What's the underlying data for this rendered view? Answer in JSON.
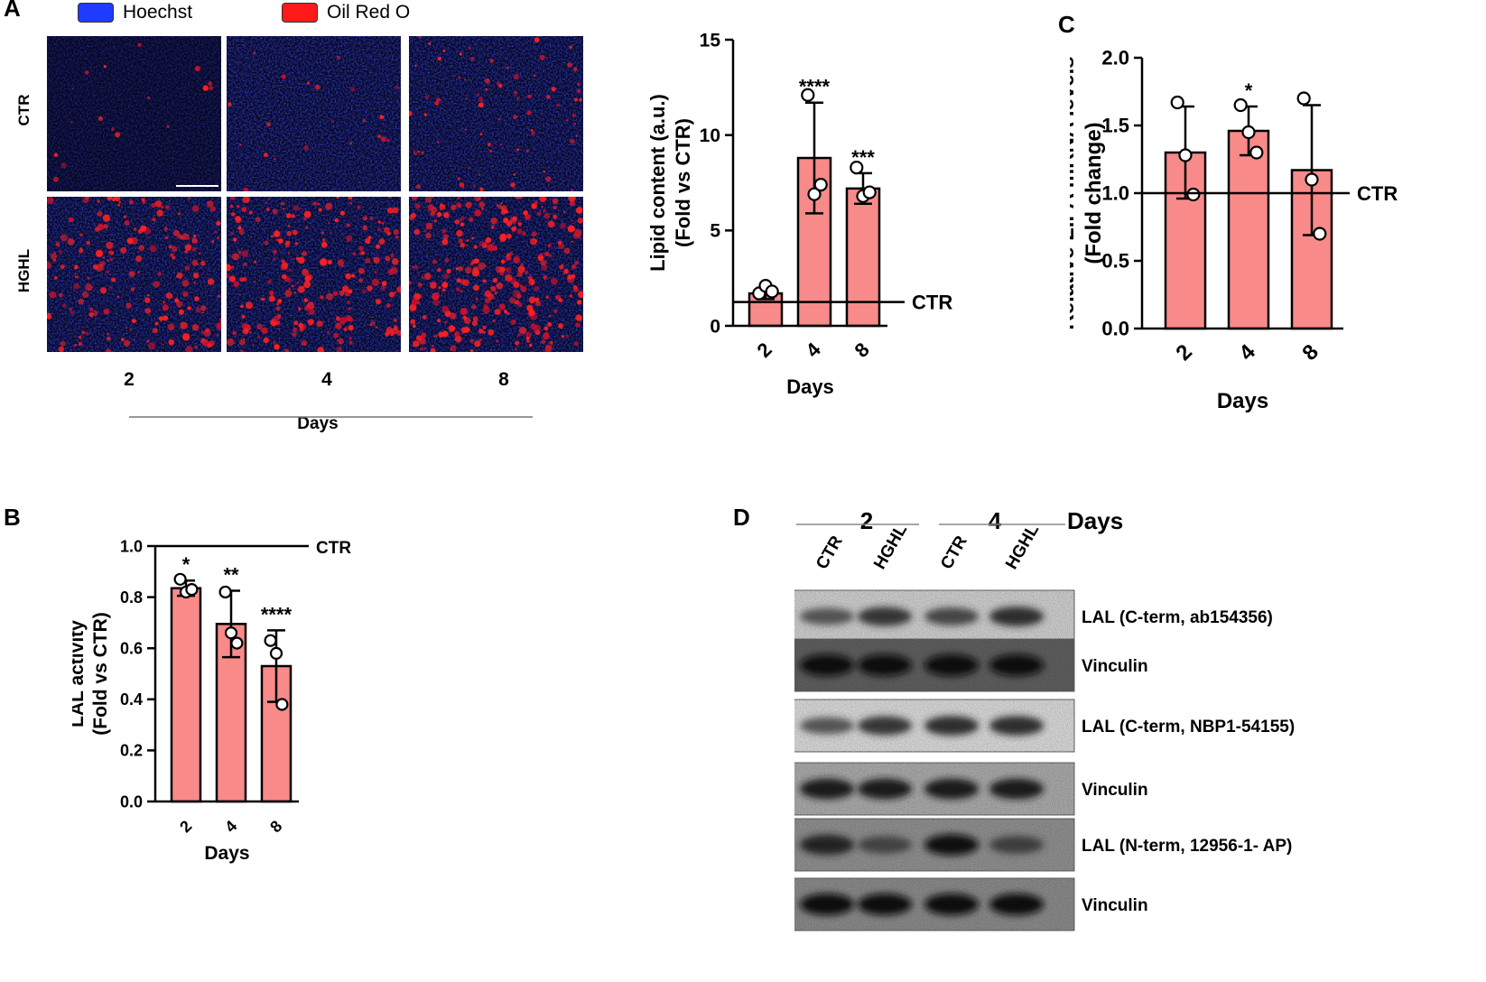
{
  "panel_labels": {
    "a": "A",
    "b": "B",
    "c": "C",
    "d": "D"
  },
  "colors": {
    "bar": "#f88a8a",
    "hoechst": "#1f3bff",
    "oil_red": "#ff1a1a"
  },
  "panel_a": {
    "legend": [
      {
        "label": "Hoechst",
        "color": "#1f3bff"
      },
      {
        "label": "Oil Red O",
        "color": "#ff1a1a"
      }
    ],
    "row_labels": [
      "CTR",
      "HGHL"
    ],
    "day_labels": [
      "2",
      "4",
      "8"
    ],
    "days_title": "Days",
    "red_density": [
      [
        0.04,
        0.05,
        0.18
      ],
      [
        0.45,
        0.55,
        0.75
      ]
    ]
  },
  "chart_data": [
    {
      "id": "lipid",
      "type": "bar",
      "categories": [
        "2",
        "4",
        "8"
      ],
      "values": [
        1.7,
        8.8,
        7.2
      ],
      "errors": [
        0.3,
        2.9,
        0.8
      ],
      "points": [
        [
          1.7,
          2.1,
          1.8
        ],
        [
          12.1,
          6.9,
          7.4
        ],
        [
          8.3,
          6.8,
          7.0
        ]
      ],
      "significance": [
        "",
        "****",
        "***"
      ],
      "reference": {
        "value": 1.25,
        "label": "CTR"
      },
      "xlabel": "Days",
      "ylabel": "Lipid content (a.u.)",
      "ylabel2": "(Fold vs CTR)",
      "ylim": [
        0,
        15
      ],
      "yticks": [
        "0",
        "5",
        "10",
        "15"
      ]
    },
    {
      "id": "lipa",
      "type": "bar",
      "categories": [
        "2",
        "4",
        "8"
      ],
      "values": [
        1.3,
        1.46,
        1.17
      ],
      "errors": [
        0.34,
        0.18,
        0.48
      ],
      "points": [
        [
          1.67,
          1.28,
          0.99
        ],
        [
          1.65,
          1.45,
          1.3
        ],
        [
          1.7,
          1.1,
          0.7
        ]
      ],
      "significance": [
        "",
        "*",
        ""
      ],
      "reference": {
        "value": 1.0,
        "label": "CTR"
      },
      "xlabel": "Days",
      "ylabel": "Relative LIPA mRNA levels",
      "ylabel2": "(Fold change)",
      "ylim": [
        0,
        2.0
      ],
      "yticks": [
        "0.0",
        "0.5",
        "1.0",
        "1.5",
        "2.0"
      ]
    },
    {
      "id": "lal",
      "type": "bar",
      "categories": [
        "2",
        "4",
        "8"
      ],
      "values": [
        0.835,
        0.695,
        0.53
      ],
      "errors": [
        0.03,
        0.13,
        0.14
      ],
      "points": [
        [
          0.87,
          0.82,
          0.83
        ],
        [
          0.82,
          0.66,
          0.62
        ],
        [
          0.63,
          0.58,
          0.38
        ]
      ],
      "significance": [
        "*",
        "**",
        "****"
      ],
      "reference": {
        "value": 1.0,
        "label": "CTR"
      },
      "xlabel": "Days",
      "ylabel": "LAL activity",
      "ylabel2": "(Fold vs CTR)",
      "ylim": [
        0,
        1.0
      ],
      "yticks": [
        "0.0",
        "0.2",
        "0.4",
        "0.6",
        "0.8",
        "1.0"
      ]
    }
  ],
  "panel_d": {
    "days": [
      "2",
      "4"
    ],
    "days_title": "Days",
    "lanes": [
      "CTR",
      "HGHL",
      "CTR",
      "HGHL"
    ],
    "blots": [
      {
        "label": "LAL (C-term, ab154356)",
        "bg": "#e6e6e6",
        "intensity": [
          0.55,
          0.75,
          0.65,
          0.8
        ]
      },
      {
        "label": "Vinculin",
        "bg": "#6a6a6a",
        "intensity": [
          1,
          1,
          1,
          1
        ]
      },
      {
        "label": "LAL (C-term, NBP1-54155)",
        "bg": "#f2f2f2",
        "intensity": [
          0.55,
          0.75,
          0.8,
          0.8
        ]
      },
      {
        "label": "Vinculin",
        "bg": "#bdbdbd",
        "intensity": [
          0.9,
          0.9,
          0.9,
          0.9
        ]
      },
      {
        "label": "LAL (N-term, 12956-1- AP)",
        "bg": "#a0a0a0",
        "intensity": [
          0.85,
          0.6,
          0.95,
          0.65
        ]
      },
      {
        "label": "Vinculin",
        "bg": "#9a9a9a",
        "intensity": [
          1,
          1,
          1,
          1
        ]
      }
    ]
  }
}
